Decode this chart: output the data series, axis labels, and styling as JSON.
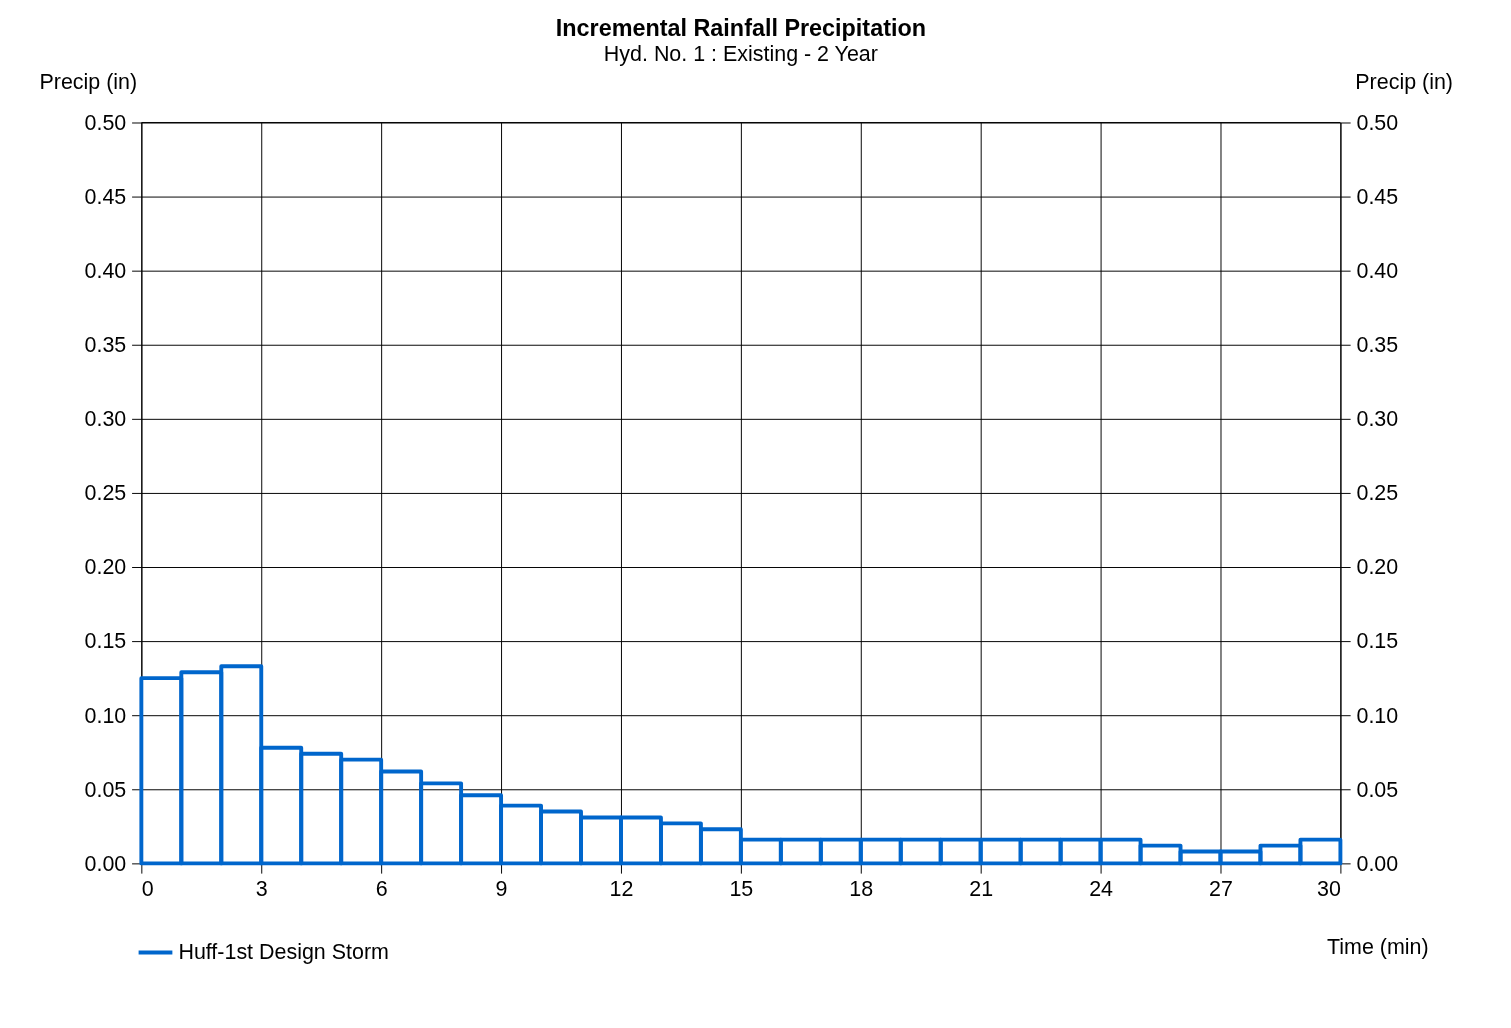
{
  "chart_data": {
    "type": "histogram",
    "title": "Incremental Rainfall Precipitation",
    "subtitle": "Hyd. No. 1 : Existing - 2 Year",
    "xlabel": "Time (min)",
    "ylabel": "Precip (in)",
    "y2label": "Precip (in)",
    "bins": [
      0,
      1,
      2,
      3,
      4,
      5,
      6,
      7,
      8,
      9,
      10,
      11,
      12,
      13,
      14,
      15,
      16,
      17,
      18,
      19,
      20,
      21,
      22,
      23,
      24,
      25,
      26,
      27,
      28,
      29,
      30
    ],
    "series": [
      {
        "name": "Huff-1st Design Storm",
        "color": "#0066cc",
        "values": [
          0.125,
          0.129,
          0.133,
          0.078,
          0.074,
          0.07,
          0.062,
          0.054,
          0.046,
          0.039,
          0.035,
          0.031,
          0.031,
          0.027,
          0.023,
          0.016,
          0.016,
          0.016,
          0.016,
          0.016,
          0.016,
          0.016,
          0.016,
          0.016,
          0.016,
          0.012,
          0.008,
          0.008,
          0.012,
          0.016
        ]
      }
    ],
    "xlim": [
      0,
      30
    ],
    "xticks": [
      0,
      3,
      6,
      9,
      12,
      15,
      18,
      21,
      24,
      27,
      30
    ],
    "ylim": [
      0,
      0.5
    ],
    "yticks": [
      {
        "value": 0,
        "label": "0.00"
      },
      {
        "value": 0.05,
        "label": "0.05"
      },
      {
        "value": 0.1,
        "label": "0.10"
      },
      {
        "value": 0.15,
        "label": "0.15"
      },
      {
        "value": 0.2,
        "label": "0.20"
      },
      {
        "value": 0.25,
        "label": "0.25"
      },
      {
        "value": 0.3,
        "label": "0.30"
      },
      {
        "value": 0.35,
        "label": "0.35"
      },
      {
        "value": 0.4,
        "label": "0.40"
      },
      {
        "value": 0.45,
        "label": "0.45"
      },
      {
        "value": 0.5,
        "label": "0.50"
      }
    ],
    "y2lim": [
      0,
      0.5
    ],
    "y2ticks": [
      {
        "value": 0,
        "label": "0.00"
      },
      {
        "value": 0.05,
        "label": "0.05"
      },
      {
        "value": 0.1,
        "label": "0.10"
      },
      {
        "value": 0.15,
        "label": "0.15"
      },
      {
        "value": 0.2,
        "label": "0.20"
      },
      {
        "value": 0.25,
        "label": "0.25"
      },
      {
        "value": 0.3,
        "label": "0.30"
      },
      {
        "value": 0.35,
        "label": "0.35"
      },
      {
        "value": 0.4,
        "label": "0.40"
      },
      {
        "value": 0.45,
        "label": "0.45"
      },
      {
        "value": 0.5,
        "label": "0.50"
      }
    ],
    "grid": true,
    "legend": "bottom left"
  }
}
